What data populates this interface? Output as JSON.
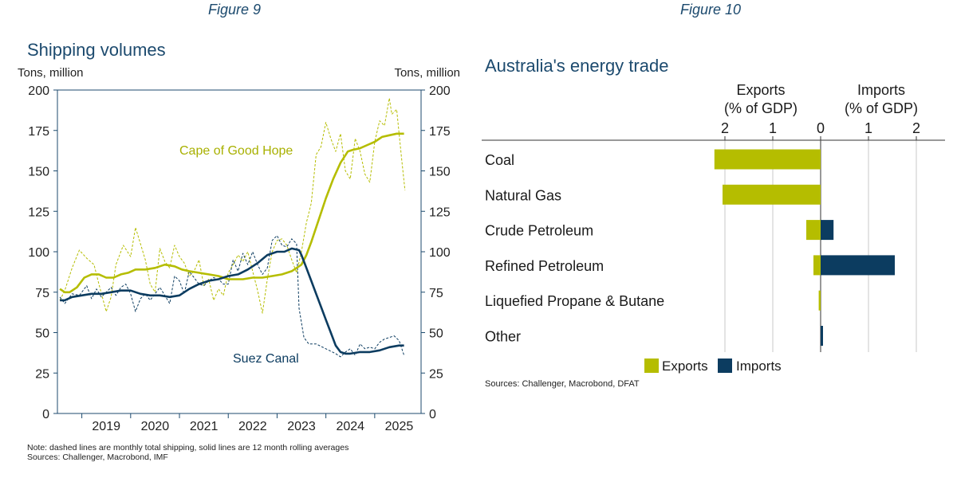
{
  "figures": {
    "left_caption": "Figure 9",
    "right_caption": "Figure 10"
  },
  "chart_data": [
    {
      "type": "line",
      "title": "Shipping volumes",
      "ylabel_left": "Tons, million",
      "ylabel_right": "Tons, million",
      "ylim": [
        0,
        200
      ],
      "yticks": [
        0,
        25,
        50,
        75,
        100,
        125,
        150,
        175,
        200
      ],
      "xlim": [
        2018.5,
        2025.95
      ],
      "x_tick_labels": [
        "2019",
        "2020",
        "2021",
        "2022",
        "2023",
        "2024",
        "2025"
      ],
      "annotations": {
        "cape": "Cape of Good Hope",
        "suez": "Suez Canal"
      },
      "series": [
        {
          "name": "Cape of Good Hope (12 month rolling average)",
          "color": "#b5bd00",
          "style": "solid",
          "x": [
            2018.55,
            2018.65,
            2018.75,
            2018.9,
            2019.05,
            2019.2,
            2019.35,
            2019.5,
            2019.65,
            2019.8,
            2019.95,
            2020.1,
            2020.3,
            2020.5,
            2020.7,
            2020.9,
            2021.05,
            2021.2,
            2021.4,
            2021.6,
            2021.8,
            2022.0,
            2022.15,
            2022.3,
            2022.5,
            2022.7,
            2022.9,
            2023.1,
            2023.3,
            2023.5,
            2023.6,
            2023.7,
            2023.8,
            2023.9,
            2024.0,
            2024.15,
            2024.3,
            2024.45,
            2024.55,
            2024.7,
            2024.85,
            2025.0,
            2025.15,
            2025.3,
            2025.45,
            2025.55,
            2025.6
          ],
          "values": [
            77,
            75,
            75,
            78,
            84,
            86,
            86,
            84,
            84,
            86,
            87,
            89,
            89,
            90,
            92,
            91,
            89,
            88,
            87,
            86,
            85,
            83,
            83,
            83,
            84,
            84,
            85,
            86,
            88,
            92,
            98,
            106,
            115,
            124,
            133,
            145,
            155,
            162,
            163,
            164,
            166,
            168,
            171,
            172,
            173,
            173,
            173
          ]
        },
        {
          "name": "Cape of Good Hope (monthly total)",
          "color": "#b5bd00",
          "style": "dashed",
          "x": [
            2018.55,
            2018.65,
            2018.8,
            2018.95,
            2019.1,
            2019.25,
            2019.35,
            2019.5,
            2019.6,
            2019.7,
            2019.85,
            2020.0,
            2020.1,
            2020.2,
            2020.3,
            2020.4,
            2020.5,
            2020.6,
            2020.7,
            2020.8,
            2020.9,
            2021.0,
            2021.1,
            2021.2,
            2021.3,
            2021.4,
            2021.5,
            2021.6,
            2021.7,
            2021.8,
            2021.9,
            2022.0,
            2022.1,
            2022.2,
            2022.3,
            2022.4,
            2022.5,
            2022.6,
            2022.7,
            2022.8,
            2022.9,
            2023.0,
            2023.1,
            2023.2,
            2023.3,
            2023.4,
            2023.5,
            2023.6,
            2023.7,
            2023.8,
            2023.9,
            2024.0,
            2024.1,
            2024.2,
            2024.3,
            2024.4,
            2024.5,
            2024.6,
            2024.7,
            2024.8,
            2024.9,
            2025.0,
            2025.1,
            2025.2,
            2025.3,
            2025.35,
            2025.45,
            2025.55,
            2025.62
          ],
          "values": [
            70,
            76,
            90,
            101,
            96,
            92,
            80,
            63,
            72,
            92,
            104,
            97,
            115,
            105,
            95,
            80,
            75,
            102,
            94,
            90,
            104,
            97,
            93,
            85,
            88,
            95,
            79,
            83,
            70,
            77,
            73,
            87,
            92,
            98,
            94,
            100,
            88,
            76,
            62,
            83,
            100,
            107,
            108,
            104,
            95,
            87,
            100,
            118,
            130,
            160,
            165,
            180,
            170,
            162,
            173,
            150,
            145,
            170,
            162,
            148,
            143,
            168,
            181,
            178,
            195,
            185,
            188,
            158,
            138
          ]
        },
        {
          "name": "Suez Canal (12 month rolling average)",
          "color": "#0c3c60",
          "style": "solid",
          "x": [
            2018.55,
            2018.65,
            2018.8,
            2019.0,
            2019.2,
            2019.4,
            2019.6,
            2019.8,
            2020.0,
            2020.2,
            2020.4,
            2020.6,
            2020.8,
            2021.0,
            2021.2,
            2021.4,
            2021.6,
            2021.8,
            2022.0,
            2022.2,
            2022.4,
            2022.6,
            2022.8,
            2023.0,
            2023.15,
            2023.3,
            2023.45,
            2023.5,
            2023.6,
            2023.7,
            2023.8,
            2023.9,
            2024.0,
            2024.1,
            2024.2,
            2024.3,
            2024.4,
            2024.5,
            2024.7,
            2024.9,
            2025.1,
            2025.3,
            2025.5,
            2025.6
          ],
          "values": [
            70,
            70,
            72,
            73,
            74,
            74,
            75,
            76,
            76,
            74,
            73,
            73,
            72,
            73,
            77,
            80,
            82,
            83,
            85,
            86,
            89,
            93,
            98,
            100,
            100,
            102,
            101,
            98,
            90,
            82,
            74,
            66,
            58,
            50,
            42,
            38,
            37,
            37,
            38,
            38,
            39,
            41,
            42,
            42
          ]
        },
        {
          "name": "Suez Canal (monthly total)",
          "color": "#0c3c60",
          "style": "dashed",
          "x": [
            2018.55,
            2018.65,
            2018.8,
            2018.95,
            2019.1,
            2019.2,
            2019.3,
            2019.4,
            2019.5,
            2019.6,
            2019.7,
            2019.8,
            2019.9,
            2020.0,
            2020.1,
            2020.2,
            2020.3,
            2020.4,
            2020.5,
            2020.6,
            2020.7,
            2020.8,
            2020.9,
            2021.0,
            2021.1,
            2021.2,
            2021.3,
            2021.4,
            2021.5,
            2021.6,
            2021.7,
            2021.8,
            2021.9,
            2022.0,
            2022.1,
            2022.2,
            2022.3,
            2022.4,
            2022.5,
            2022.6,
            2022.7,
            2022.8,
            2022.9,
            2023.0,
            2023.1,
            2023.2,
            2023.3,
            2023.4,
            2023.45,
            2023.55,
            2023.65,
            2023.8,
            2024.0,
            2024.2,
            2024.3,
            2024.4,
            2024.5,
            2024.6,
            2024.7,
            2024.8,
            2024.9,
            2025.0,
            2025.1,
            2025.2,
            2025.3,
            2025.4,
            2025.5,
            2025.6
          ],
          "values": [
            72,
            68,
            74,
            73,
            79,
            71,
            77,
            72,
            75,
            78,
            73,
            78,
            80,
            74,
            63,
            71,
            74,
            70,
            74,
            78,
            73,
            68,
            85,
            82,
            74,
            88,
            84,
            80,
            79,
            82,
            84,
            83,
            80,
            80,
            95,
            88,
            99,
            92,
            100,
            92,
            86,
            90,
            107,
            110,
            104,
            103,
            108,
            105,
            65,
            47,
            43,
            43,
            40,
            37,
            35,
            38,
            40,
            36,
            43,
            40,
            41,
            40,
            44,
            46,
            47,
            48,
            45,
            36
          ]
        }
      ],
      "note": "Note: dashed lines are monthly total shipping, solid lines are 12 month rolling averages",
      "source": "Sources: Challenger, Macrobond, IMF"
    },
    {
      "type": "bar",
      "orientation": "horizontal",
      "title": "Australia's energy trade",
      "xlabel_exports": "Exports (% of GDP)",
      "xlabel_exports_lines": [
        "Exports",
        "(% of GDP)"
      ],
      "xlabel_imports_lines": [
        "Imports",
        "(% of GDP)"
      ],
      "x_ticks_exports": [
        "2",
        "1",
        "0"
      ],
      "x_ticks_imports": [
        "1",
        "2"
      ],
      "xlim": [
        -2.5,
        2.5
      ],
      "categories": [
        "Coal",
        "Natural Gas",
        "Crude Petroleum",
        "Refined Petroleum",
        "Liquefied Propane & Butane",
        "Other"
      ],
      "series": [
        {
          "name": "Exports",
          "color": "#b5bd00",
          "values": [
            2.22,
            2.05,
            0.3,
            0.15,
            0.04,
            0.0
          ]
        },
        {
          "name": "Imports",
          "color": "#0c3c60",
          "values": [
            0.0,
            0.0,
            0.27,
            1.55,
            0.0,
            0.05
          ]
        }
      ],
      "legend": {
        "exports": "Exports",
        "imports": "Imports"
      },
      "source": "Sources: Challenger, Macrobond, DFAT"
    }
  ]
}
